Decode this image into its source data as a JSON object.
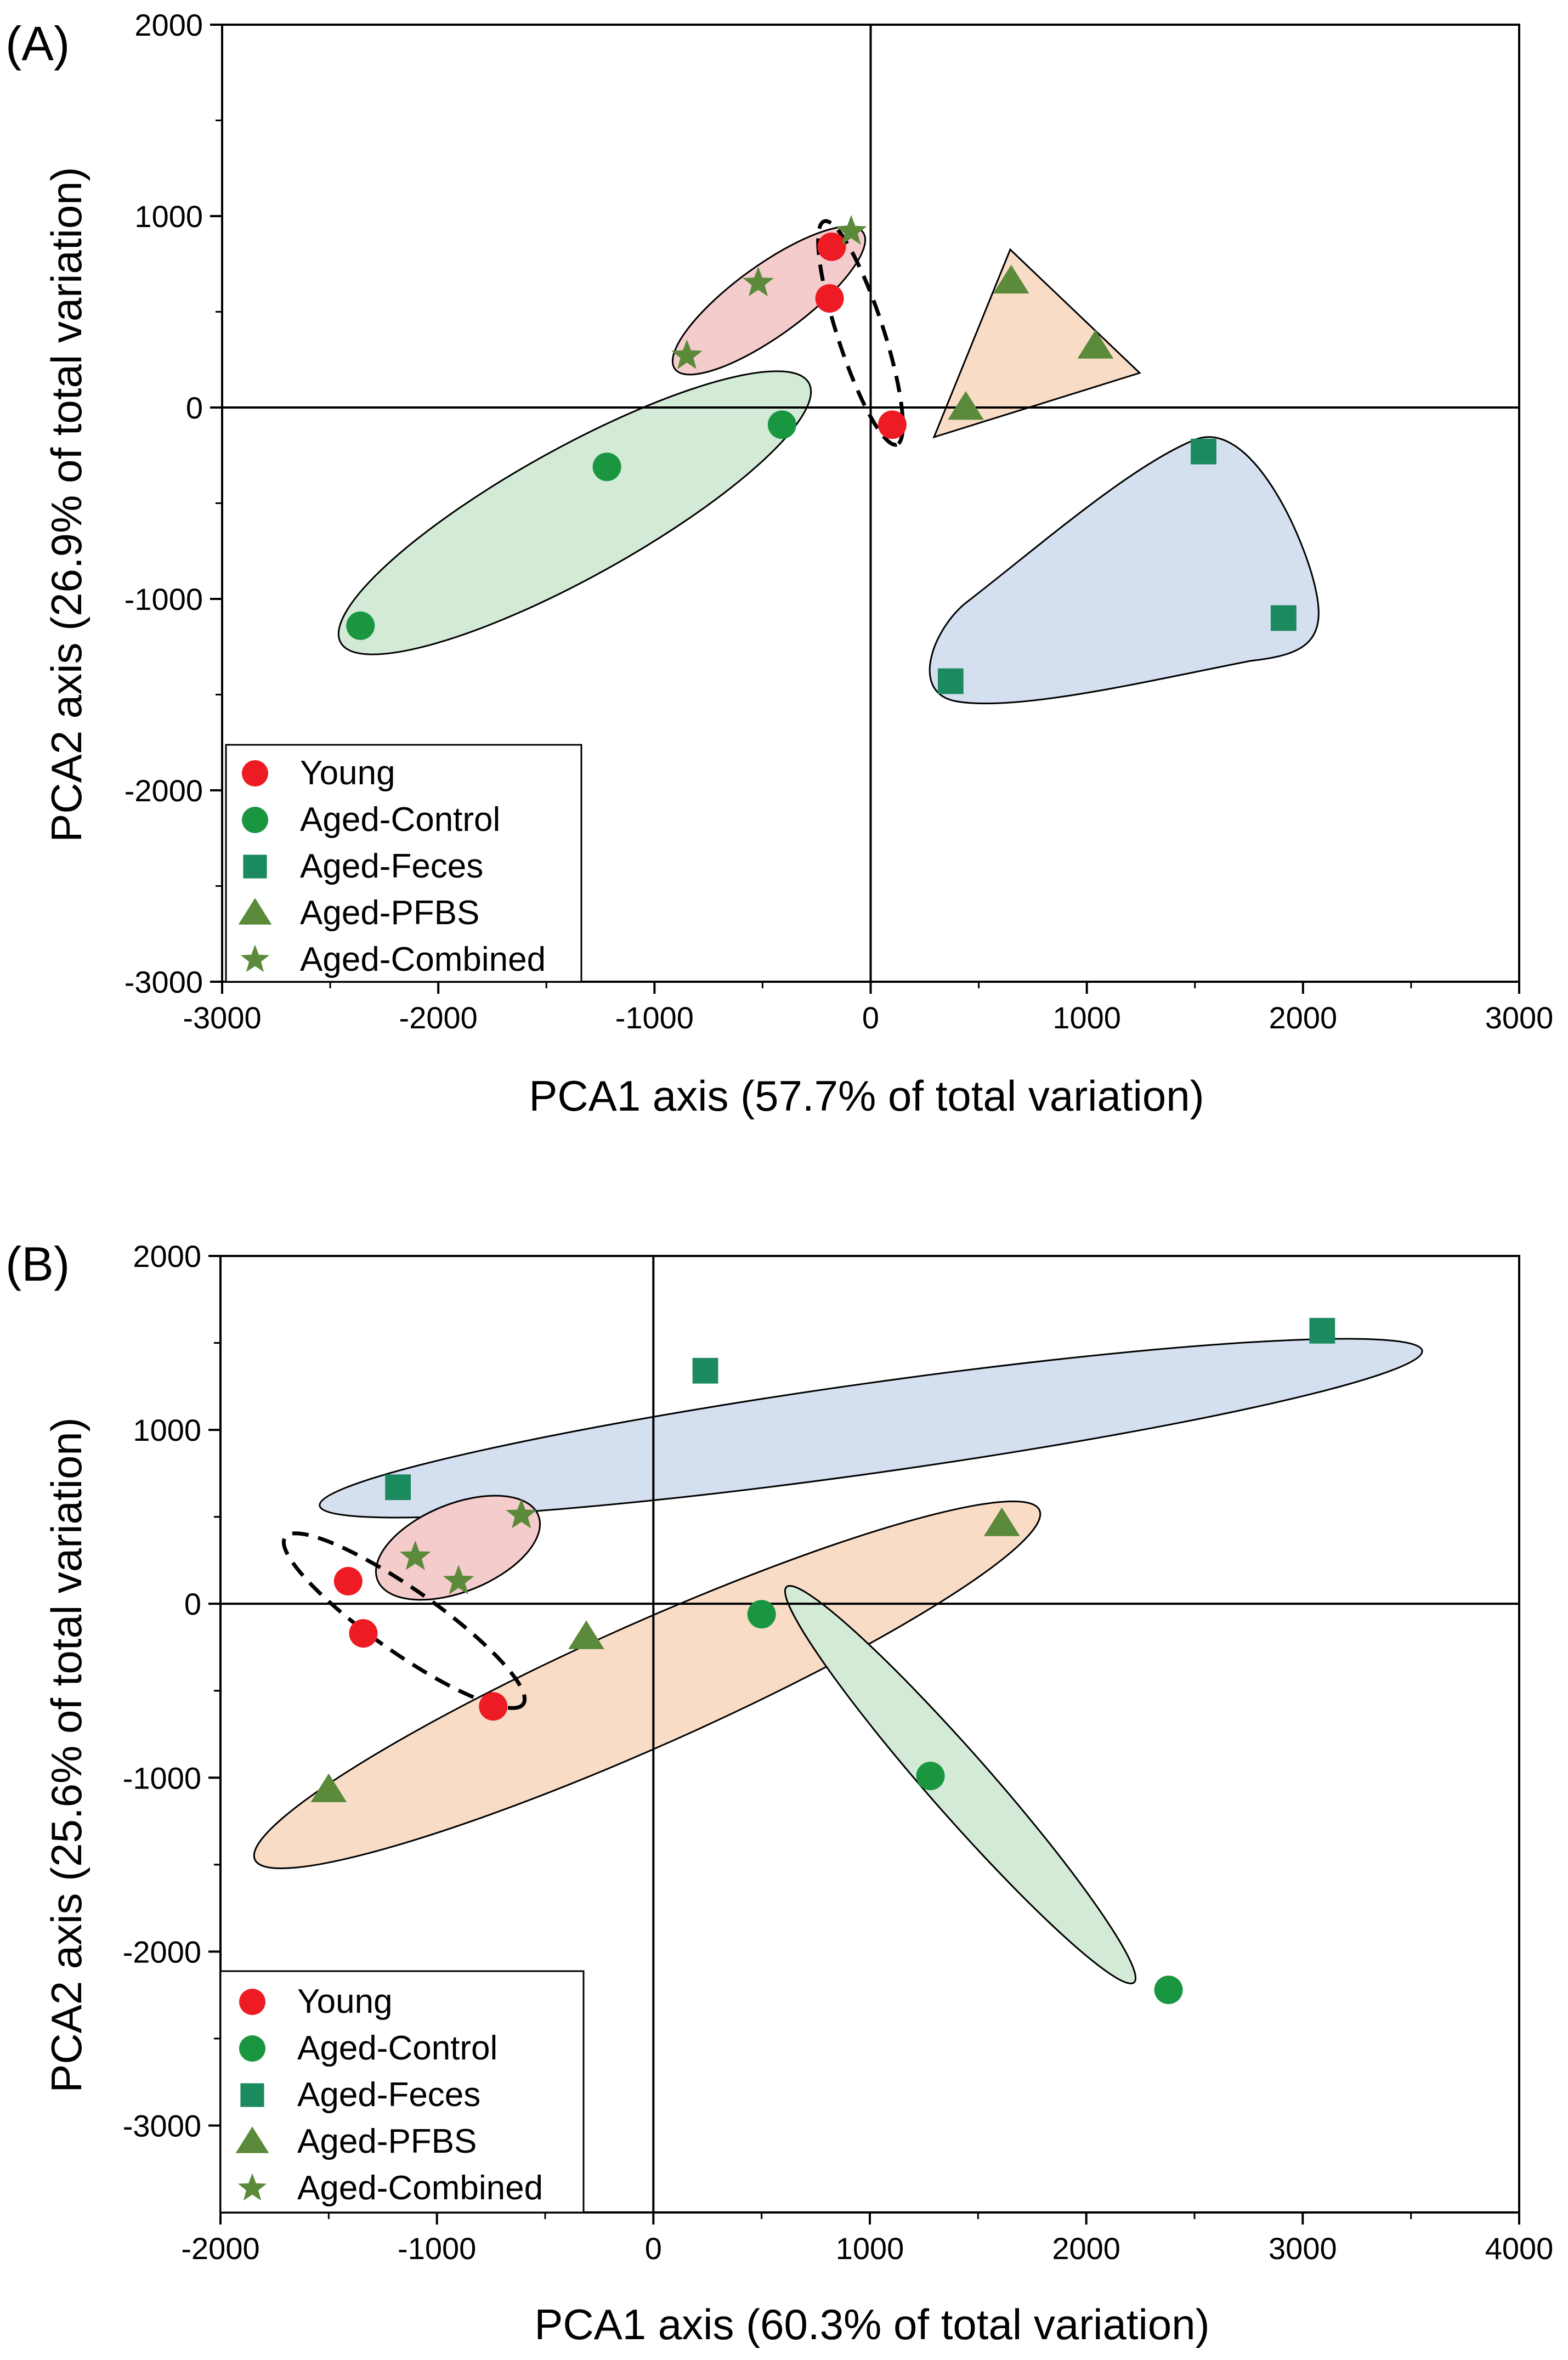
{
  "chart_data": [
    {
      "type": "scatter",
      "panel_label": "(A)",
      "xlabel": "PCA1 axis (57.7% of total variation)",
      "ylabel": "PCA2 axis (26.9% of total variation)",
      "xlim": [
        -3000,
        3000
      ],
      "ylim": [
        -3000,
        2000
      ],
      "xticks": [
        -3000,
        -2000,
        -1000,
        0,
        1000,
        2000,
        3000
      ],
      "yticks": [
        -3000,
        -2000,
        -1000,
        0,
        1000,
        2000
      ],
      "legend": [
        "Young",
        "Aged-Control",
        "Aged-Feces",
        "Aged-PFBS",
        "Aged-Combined"
      ],
      "legend_position": "bottom-left",
      "series": [
        {
          "name": "Young",
          "marker": "circle",
          "color": "#ed1c24",
          "points": [
            [
              -180,
              840
            ],
            [
              -190,
              570
            ],
            [
              100,
              -90
            ]
          ]
        },
        {
          "name": "Aged-Control",
          "marker": "circle",
          "color": "#1a9641",
          "points": [
            [
              -2360,
              -1140
            ],
            [
              -1220,
              -310
            ],
            [
              -410,
              -90
            ]
          ]
        },
        {
          "name": "Aged-Feces",
          "marker": "square",
          "color": "#1b8a5e",
          "points": [
            [
              370,
              -1430
            ],
            [
              1540,
              -230
            ],
            [
              1910,
              -1100
            ]
          ]
        },
        {
          "name": "Aged-PFBS",
          "marker": "triangle",
          "color": "#5b8a3a",
          "points": [
            [
              440,
              0
            ],
            [
              650,
              660
            ],
            [
              1040,
              320
            ]
          ]
        },
        {
          "name": "Aged-Combined",
          "marker": "star",
          "color": "#5b8a3a",
          "points": [
            [
              -850,
              270
            ],
            [
              -520,
              650
            ],
            [
              -90,
              920
            ]
          ]
        }
      ]
    },
    {
      "type": "scatter",
      "panel_label": "(B)",
      "xlabel": "PCA1 axis (60.3% of total variation)",
      "ylabel": "PCA2 axis (25.6% of total variation)",
      "xlim": [
        -2000,
        4000
      ],
      "ylim": [
        -3500,
        2000
      ],
      "xticks": [
        -2000,
        -1000,
        0,
        1000,
        2000,
        3000,
        4000
      ],
      "yticks": [
        -3000,
        -2000,
        -1000,
        0,
        1000,
        2000
      ],
      "legend": [
        "Young",
        "Aged-Control",
        "Aged-Feces",
        "Aged-PFBS",
        "Aged-Combined"
      ],
      "legend_position": "bottom-left",
      "series": [
        {
          "name": "Young",
          "marker": "circle",
          "color": "#ed1c24",
          "points": [
            [
              -1410,
              130
            ],
            [
              -1340,
              -170
            ],
            [
              -740,
              -590
            ]
          ]
        },
        {
          "name": "Aged-Control",
          "marker": "circle",
          "color": "#1a9641",
          "points": [
            [
              500,
              -60
            ],
            [
              1280,
              -990
            ],
            [
              2380,
              -2220
            ]
          ]
        },
        {
          "name": "Aged-Feces",
          "marker": "square",
          "color": "#1b8a5e",
          "points": [
            [
              -1180,
              670
            ],
            [
              240,
              1340
            ],
            [
              3090,
              1570
            ]
          ]
        },
        {
          "name": "Aged-PFBS",
          "marker": "triangle",
          "color": "#5b8a3a",
          "points": [
            [
              -1500,
              -1070
            ],
            [
              -310,
              -190
            ],
            [
              1610,
              460
            ]
          ]
        },
        {
          "name": "Aged-Combined",
          "marker": "star",
          "color": "#5b8a3a",
          "points": [
            [
              -1100,
              270
            ],
            [
              -900,
              130
            ],
            [
              -610,
              510
            ]
          ]
        }
      ]
    }
  ]
}
